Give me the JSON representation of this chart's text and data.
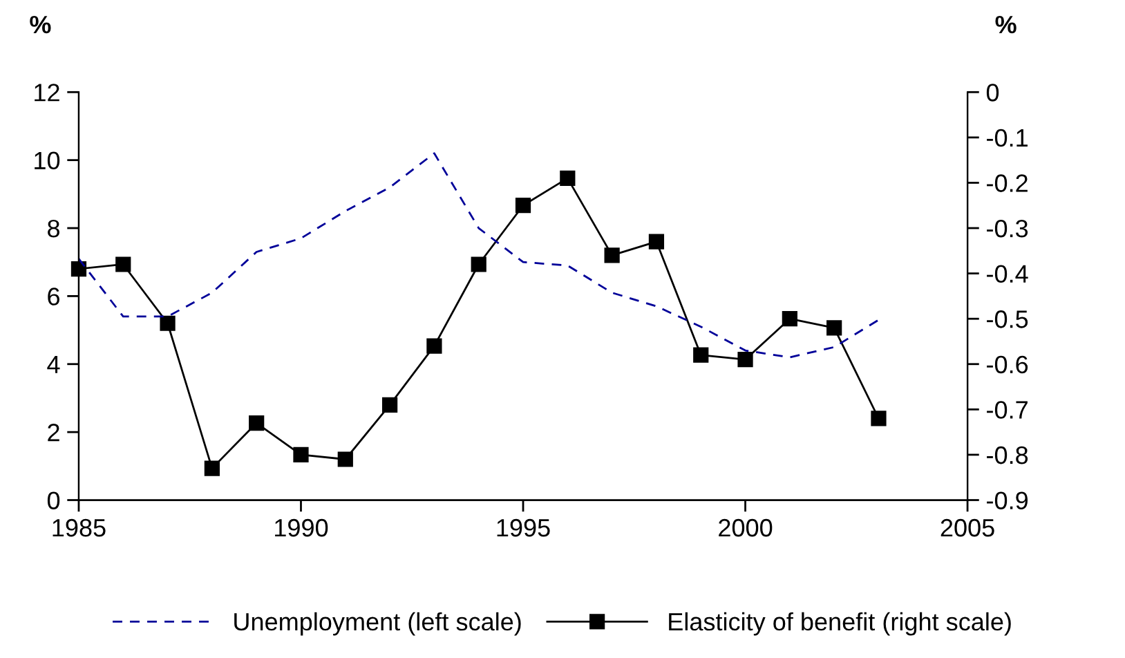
{
  "chart_data": {
    "type": "line",
    "x": [
      1985,
      1986,
      1987,
      1988,
      1989,
      1990,
      1991,
      1992,
      1993,
      1994,
      1995,
      1996,
      1997,
      1998,
      1999,
      2000,
      2001,
      2002,
      2003
    ],
    "series": [
      {
        "name": "Unemployment (left scale)",
        "color": "#000099",
        "line_style": "dashed",
        "marker": "none",
        "values": [
          7.1,
          5.4,
          5.4,
          6.1,
          7.3,
          7.7,
          8.5,
          9.2,
          10.2,
          8.0,
          7.0,
          6.9,
          6.1,
          5.7,
          5.1,
          4.4,
          4.2,
          4.5,
          5.3
        ]
      },
      {
        "name": "Elasticity of benefit (right scale)",
        "color": "#000000",
        "line_style": "solid",
        "marker": "square",
        "axis": "y2",
        "values": [
          -0.39,
          -0.38,
          -0.51,
          -0.83,
          -0.73,
          -0.8,
          -0.81,
          -0.69,
          -0.56,
          -0.38,
          -0.25,
          -0.19,
          -0.36,
          -0.33,
          -0.58,
          -0.59,
          -0.5,
          -0.52,
          -0.72
        ]
      }
    ],
    "ylabel": "%",
    "y2label": "%",
    "xlim": [
      1985,
      2005
    ],
    "xticks": [
      1985,
      1990,
      1995,
      2000,
      2005
    ],
    "ylim": [
      0,
      12
    ],
    "yticks": [
      0,
      2,
      4,
      6,
      8,
      10,
      12
    ],
    "y2lim": [
      -0.9,
      0
    ],
    "y2ticks": [
      {
        "value": 0,
        "label": "0"
      },
      {
        "value": -0.1,
        "label": "-0.1"
      },
      {
        "value": -0.2,
        "label": "-0.2"
      },
      {
        "value": -0.3,
        "label": "-0.3"
      },
      {
        "value": -0.4,
        "label": "-0.4"
      },
      {
        "value": -0.5,
        "label": "-0.5"
      },
      {
        "value": -0.6,
        "label": "-0.6"
      },
      {
        "value": -0.7,
        "label": "-0.7"
      },
      {
        "value": -0.8,
        "label": "-0.8"
      },
      {
        "value": -0.9,
        "label": "-0.9"
      }
    ],
    "grid": false,
    "legend": "bottom"
  }
}
